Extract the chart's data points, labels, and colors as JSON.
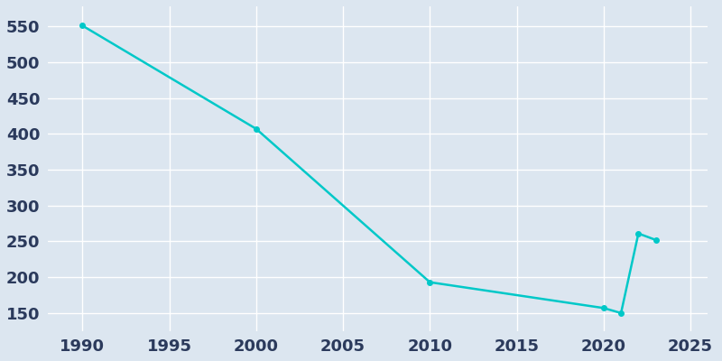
{
  "years": [
    1990,
    2000,
    2010,
    2020,
    2021,
    2022,
    2023
  ],
  "population": [
    551,
    407,
    193,
    157,
    150,
    261,
    252
  ],
  "line_color": "#00C8C8",
  "marker_style": "o",
  "marker_size": 4,
  "line_width": 1.8,
  "background_color": "#dce6f0",
  "grid_color": "#ffffff",
  "tick_label_color": "#2b3a5c",
  "xlim": [
    1988,
    2026
  ],
  "ylim": [
    125,
    578
  ],
  "xticks": [
    1990,
    1995,
    2000,
    2005,
    2010,
    2015,
    2020,
    2025
  ],
  "yticks": [
    150,
    200,
    250,
    300,
    350,
    400,
    450,
    500,
    550
  ],
  "tick_fontsize": 13,
  "figure_facecolor": "#dce6f0"
}
